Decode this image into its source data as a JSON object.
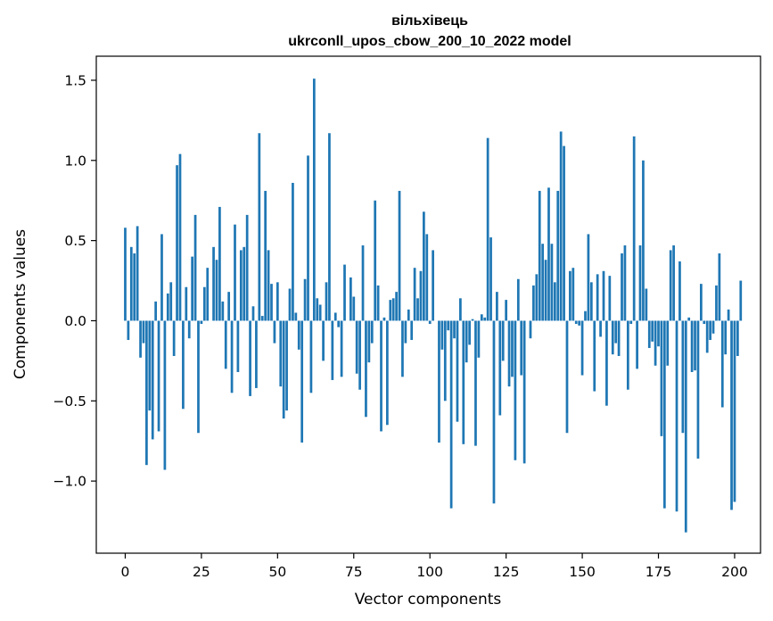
{
  "chart_data": {
    "type": "bar",
    "title": [
      "вільхівець",
      "ukrconll_upos_cbow_200_10_2022 model"
    ],
    "xlabel": "Vector components",
    "ylabel": "Components values",
    "xlim": [
      -9.5,
      208.5
    ],
    "ylim": [
      -1.45,
      1.65
    ],
    "xticks": [
      0,
      25,
      50,
      75,
      100,
      125,
      150,
      175,
      200
    ],
    "yticks": [
      -1.0,
      -0.5,
      0.0,
      0.5,
      1.0,
      1.5
    ],
    "ytick_labels": [
      "−1.0",
      "−0.5",
      "0.0",
      "0.5",
      "1.0",
      "1.5"
    ],
    "grid": false,
    "bar_color": "#1f77b4",
    "values": [
      0.58,
      -0.12,
      0.46,
      0.42,
      0.59,
      -0.23,
      -0.14,
      -0.9,
      -0.56,
      -0.74,
      0.12,
      -0.69,
      0.54,
      -0.93,
      0.17,
      0.24,
      -0.22,
      0.97,
      1.04,
      -0.55,
      0.21,
      -0.11,
      0.4,
      0.66,
      -0.7,
      -0.02,
      0.21,
      0.33,
      0.0,
      0.46,
      0.38,
      0.71,
      0.12,
      -0.3,
      0.18,
      -0.45,
      0.6,
      -0.32,
      0.44,
      0.46,
      0.66,
      -0.47,
      0.09,
      -0.42,
      1.17,
      0.03,
      0.81,
      0.44,
      0.23,
      -0.14,
      0.24,
      -0.41,
      -0.61,
      -0.56,
      0.2,
      0.86,
      0.05,
      -0.18,
      -0.76,
      0.26,
      1.03,
      -0.45,
      1.51,
      0.14,
      0.1,
      -0.25,
      0.24,
      1.17,
      -0.37,
      0.05,
      -0.04,
      -0.35,
      0.35,
      0.0,
      0.27,
      0.15,
      -0.33,
      -0.43,
      0.47,
      -0.6,
      -0.26,
      -0.14,
      0.75,
      0.22,
      -0.69,
      0.02,
      -0.65,
      0.13,
      0.14,
      0.18,
      0.81,
      -0.35,
      -0.14,
      0.07,
      -0.12,
      0.33,
      0.14,
      0.31,
      0.68,
      0.54,
      -0.02,
      0.44,
      0.0,
      -0.76,
      -0.18,
      -0.5,
      -0.06,
      -1.17,
      -0.11,
      -0.63,
      0.14,
      -0.77,
      -0.26,
      -0.15,
      0.01,
      -0.78,
      -0.23,
      0.04,
      0.02,
      1.14,
      0.52,
      -1.14,
      0.18,
      -0.59,
      -0.25,
      0.13,
      -0.41,
      -0.35,
      -0.87,
      0.26,
      -0.34,
      -0.89,
      0.0,
      -0.11,
      0.22,
      0.29,
      0.81,
      0.48,
      0.38,
      0.83,
      0.48,
      0.24,
      0.81,
      1.18,
      1.09,
      -0.7,
      0.31,
      0.33,
      -0.02,
      -0.03,
      -0.34,
      0.06,
      0.54,
      0.24,
      -0.44,
      0.29,
      -0.1,
      0.31,
      -0.53,
      0.28,
      -0.21,
      -0.14,
      -0.22,
      0.42,
      0.47,
      -0.43,
      -0.02,
      1.15,
      -0.3,
      0.47,
      1.0,
      0.2,
      -0.17,
      -0.13,
      -0.28,
      -0.16,
      -0.72,
      -1.17,
      -0.28,
      0.44,
      0.47,
      -1.19,
      0.37,
      -0.7,
      -1.32,
      0.02,
      -0.32,
      -0.31,
      -0.86,
      0.23,
      -0.02,
      -0.2,
      -0.12,
      -0.08,
      0.22,
      0.42,
      -0.54,
      -0.21,
      0.07,
      -1.18,
      -1.13,
      -0.22,
      0.25
    ]
  }
}
